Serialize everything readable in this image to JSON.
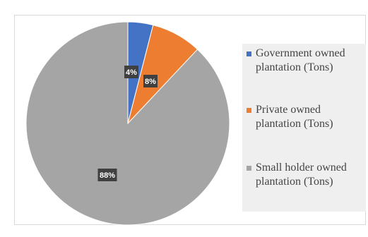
{
  "chart_data": {
    "type": "pie",
    "slices": [
      {
        "label": "Government owned plantation (Tons)",
        "value": 4,
        "data_label": "4%",
        "color": "#4472c4"
      },
      {
        "label": "Private owned plantation (Tons)",
        "value": 8,
        "data_label": "8%",
        "color": "#ed7d31"
      },
      {
        "label": "Small holder owned plantation (Tons)",
        "value": 88,
        "data_label": "88%",
        "color": "#a5a5a5"
      }
    ],
    "legend_position": "right"
  }
}
